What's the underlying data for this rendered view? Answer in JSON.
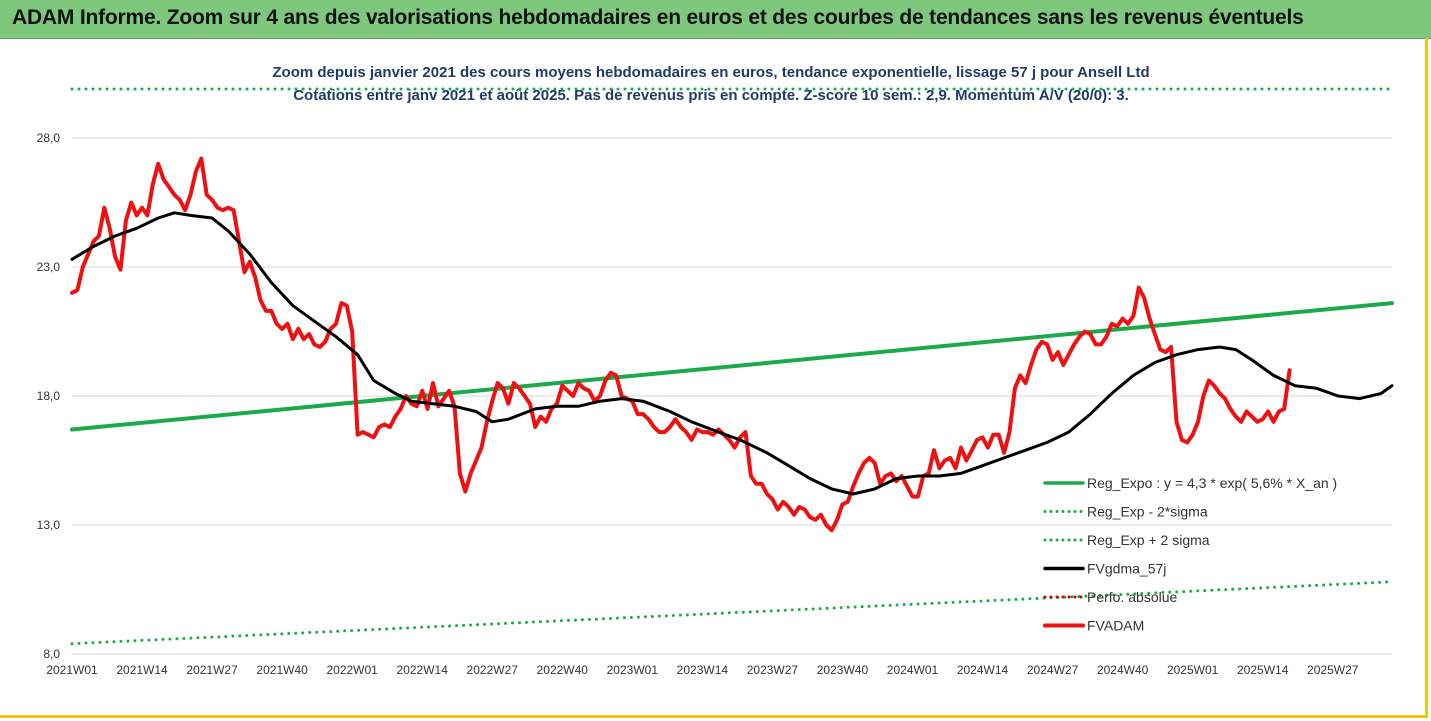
{
  "header": {
    "title": "ADAM Informe. Zoom sur 4 ans des valorisations hebdomadaires en euros et des courbes de tendances sans les revenus éventuels"
  },
  "colors": {
    "header_bg": "#7dc87d",
    "reg": "#1aaa4a",
    "price": "#ee1111",
    "smooth": "#000000",
    "perfo": "#cc0000",
    "frame": "#f0c419"
  },
  "chart_data": {
    "type": "line",
    "subtitle_lines": [
      "Zoom depuis janvier 2021 des cours moyens hebdomadaires en euros, tendance exponentielle, lissage 57 j pour Ansell Ltd",
      "Cotations entre janv 2021 et août 2025.  Pas de revenus pris en compte. Z-score 10 sem.: 2,9. Momentum A/V (20/0): 3."
    ],
    "ylim": [
      8.0,
      30.0
    ],
    "y_ticks": [
      "8,0",
      "13,0",
      "18,0",
      "23,0",
      "28,0"
    ],
    "y_tick_values": [
      8,
      13,
      18,
      23,
      28
    ],
    "x_ticks": [
      "2021W01",
      "2021W14",
      "2021W27",
      "2021W40",
      "2022W01",
      "2022W14",
      "2022W27",
      "2022W40",
      "2023W01",
      "2023W14",
      "2023W27",
      "2023W40",
      "2024W01",
      "2024W14",
      "2024W27",
      "2024W40",
      "2025W01",
      "2025W14",
      "2025W27"
    ],
    "x_tick_index": [
      0,
      13,
      26,
      39,
      52,
      65,
      78,
      91,
      104,
      117,
      130,
      143,
      156,
      169,
      182,
      195,
      208,
      221,
      234
    ],
    "x_max_index": 245,
    "grid": "horizontal",
    "legend_position": "bottom-right",
    "series": [
      {
        "name": "Reg_Expo : y = 4,3 * exp( 5,6% *  X_an )",
        "style": "solid",
        "color": "#1aaa4a",
        "points": [
          [
            0,
            16.7
          ],
          [
            245,
            21.6
          ]
        ]
      },
      {
        "name": "Reg_Exp - 2*sigma",
        "style": "dotted",
        "color": "#1aaa4a",
        "points": [
          [
            0,
            8.4
          ],
          [
            245,
            10.8
          ]
        ]
      },
      {
        "name": "Reg_Exp + 2 sigma",
        "style": "dotted",
        "color": "#1aaa4a",
        "points": [
          [
            0,
            29.9
          ],
          [
            245,
            29.9
          ]
        ]
      },
      {
        "name": "FVgdma_57j",
        "style": "solid",
        "color": "#000000",
        "points": [
          [
            0,
            23.3
          ],
          [
            4,
            23.8
          ],
          [
            8,
            24.2
          ],
          [
            12,
            24.5
          ],
          [
            16,
            24.9
          ],
          [
            19,
            25.1
          ],
          [
            22,
            25.0
          ],
          [
            26,
            24.9
          ],
          [
            29,
            24.4
          ],
          [
            33,
            23.5
          ],
          [
            37,
            22.4
          ],
          [
            41,
            21.5
          ],
          [
            45,
            20.9
          ],
          [
            49,
            20.3
          ],
          [
            53,
            19.6
          ],
          [
            56,
            18.6
          ],
          [
            60,
            18.1
          ],
          [
            63,
            17.8
          ],
          [
            67,
            17.7
          ],
          [
            71,
            17.6
          ],
          [
            75,
            17.4
          ],
          [
            78,
            17.0
          ],
          [
            81,
            17.1
          ],
          [
            86,
            17.5
          ],
          [
            90,
            17.6
          ],
          [
            94,
            17.6
          ],
          [
            98,
            17.8
          ],
          [
            102,
            17.9
          ],
          [
            106,
            17.8
          ],
          [
            111,
            17.4
          ],
          [
            115,
            17.0
          ],
          [
            120,
            16.6
          ],
          [
            124,
            16.3
          ],
          [
            129,
            15.8
          ],
          [
            133,
            15.3
          ],
          [
            137,
            14.8
          ],
          [
            141,
            14.4
          ],
          [
            145,
            14.2
          ],
          [
            149,
            14.4
          ],
          [
            153,
            14.8
          ],
          [
            157,
            14.9
          ],
          [
            161,
            14.9
          ],
          [
            165,
            15.0
          ],
          [
            169,
            15.3
          ],
          [
            173,
            15.6
          ],
          [
            177,
            15.9
          ],
          [
            181,
            16.2
          ],
          [
            185,
            16.6
          ],
          [
            189,
            17.3
          ],
          [
            193,
            18.1
          ],
          [
            197,
            18.8
          ],
          [
            201,
            19.3
          ],
          [
            205,
            19.6
          ],
          [
            209,
            19.8
          ],
          [
            213,
            19.9
          ],
          [
            216,
            19.8
          ],
          [
            219,
            19.4
          ],
          [
            223,
            18.8
          ],
          [
            227,
            18.4
          ],
          [
            231,
            18.3
          ],
          [
            235,
            18.0
          ],
          [
            239,
            17.9
          ],
          [
            243,
            18.1
          ],
          [
            245,
            18.4
          ]
        ]
      },
      {
        "name": "Perfo. absolue",
        "style": "dotted",
        "color": "#cc0000",
        "points": []
      },
      {
        "name": "FVADAM",
        "style": "solid",
        "color": "#ee1111",
        "points": [
          [
            0,
            22.0
          ],
          [
            1,
            22.1
          ],
          [
            2,
            23.0
          ],
          [
            3,
            23.5
          ],
          [
            4,
            24.0
          ],
          [
            5,
            24.2
          ],
          [
            6,
            25.3
          ],
          [
            7,
            24.5
          ],
          [
            8,
            23.4
          ],
          [
            9,
            22.9
          ],
          [
            10,
            24.8
          ],
          [
            11,
            25.5
          ],
          [
            12,
            25.0
          ],
          [
            13,
            25.3
          ],
          [
            14,
            25.0
          ],
          [
            15,
            26.2
          ],
          [
            16,
            27.0
          ],
          [
            17,
            26.4
          ],
          [
            18,
            26.1
          ],
          [
            19,
            25.8
          ],
          [
            20,
            25.6
          ],
          [
            21,
            25.2
          ],
          [
            22,
            25.8
          ],
          [
            23,
            26.7
          ],
          [
            24,
            27.2
          ],
          [
            25,
            25.8
          ],
          [
            26,
            25.6
          ],
          [
            27,
            25.3
          ],
          [
            28,
            25.2
          ],
          [
            29,
            25.3
          ],
          [
            30,
            25.2
          ],
          [
            31,
            24.0
          ],
          [
            32,
            22.8
          ],
          [
            33,
            23.2
          ],
          [
            34,
            22.6
          ],
          [
            35,
            21.7
          ],
          [
            36,
            21.3
          ],
          [
            37,
            21.3
          ],
          [
            38,
            20.8
          ],
          [
            39,
            20.6
          ],
          [
            40,
            20.8
          ],
          [
            41,
            20.2
          ],
          [
            42,
            20.6
          ],
          [
            43,
            20.2
          ],
          [
            44,
            20.4
          ],
          [
            45,
            20.0
          ],
          [
            46,
            19.9
          ],
          [
            47,
            20.1
          ],
          [
            48,
            20.6
          ],
          [
            49,
            20.8
          ],
          [
            50,
            21.6
          ],
          [
            51,
            21.5
          ],
          [
            52,
            20.5
          ],
          [
            53,
            16.5
          ],
          [
            54,
            16.6
          ],
          [
            55,
            16.5
          ],
          [
            56,
            16.4
          ],
          [
            57,
            16.8
          ],
          [
            58,
            16.9
          ],
          [
            59,
            16.8
          ],
          [
            60,
            17.2
          ],
          [
            61,
            17.5
          ],
          [
            62,
            18.0
          ],
          [
            63,
            17.7
          ],
          [
            64,
            17.6
          ],
          [
            65,
            18.2
          ],
          [
            66,
            17.5
          ],
          [
            67,
            18.5
          ],
          [
            68,
            17.6
          ],
          [
            69,
            17.9
          ],
          [
            70,
            18.2
          ],
          [
            71,
            17.6
          ],
          [
            72,
            15.0
          ],
          [
            73,
            14.3
          ],
          [
            74,
            15.0
          ],
          [
            75,
            15.5
          ],
          [
            76,
            16.0
          ],
          [
            77,
            17.0
          ],
          [
            78,
            17.8
          ],
          [
            79,
            18.5
          ],
          [
            80,
            18.3
          ],
          [
            81,
            17.7
          ],
          [
            82,
            18.5
          ],
          [
            83,
            18.3
          ],
          [
            84,
            18.0
          ],
          [
            85,
            17.7
          ],
          [
            86,
            16.8
          ],
          [
            87,
            17.2
          ],
          [
            88,
            17.0
          ],
          [
            89,
            17.5
          ],
          [
            90,
            17.7
          ],
          [
            91,
            18.4
          ],
          [
            92,
            18.2
          ],
          [
            93,
            18.0
          ],
          [
            94,
            18.5
          ],
          [
            95,
            18.3
          ],
          [
            96,
            18.2
          ],
          [
            97,
            17.8
          ],
          [
            98,
            18.0
          ],
          [
            99,
            18.6
          ],
          [
            100,
            18.9
          ],
          [
            101,
            18.8
          ],
          [
            102,
            18.0
          ],
          [
            103,
            17.9
          ],
          [
            104,
            17.8
          ],
          [
            105,
            17.3
          ],
          [
            106,
            17.3
          ],
          [
            107,
            17.1
          ],
          [
            108,
            16.8
          ],
          [
            109,
            16.6
          ],
          [
            110,
            16.6
          ],
          [
            111,
            16.8
          ],
          [
            112,
            17.1
          ],
          [
            113,
            16.8
          ],
          [
            114,
            16.6
          ],
          [
            115,
            16.3
          ],
          [
            116,
            16.7
          ],
          [
            117,
            16.6
          ],
          [
            118,
            16.6
          ],
          [
            119,
            16.5
          ],
          [
            120,
            16.7
          ],
          [
            121,
            16.5
          ],
          [
            122,
            16.3
          ],
          [
            123,
            16.0
          ],
          [
            124,
            16.4
          ],
          [
            125,
            16.6
          ],
          [
            126,
            14.9
          ],
          [
            127,
            14.6
          ],
          [
            128,
            14.6
          ],
          [
            129,
            14.2
          ],
          [
            130,
            14.0
          ],
          [
            131,
            13.6
          ],
          [
            132,
            13.9
          ],
          [
            133,
            13.7
          ],
          [
            134,
            13.4
          ],
          [
            135,
            13.7
          ],
          [
            136,
            13.6
          ],
          [
            137,
            13.3
          ],
          [
            138,
            13.2
          ],
          [
            139,
            13.4
          ],
          [
            140,
            13.0
          ],
          [
            141,
            12.8
          ],
          [
            142,
            13.2
          ],
          [
            143,
            13.8
          ],
          [
            144,
            13.9
          ],
          [
            145,
            14.5
          ],
          [
            146,
            15.0
          ],
          [
            147,
            15.4
          ],
          [
            148,
            15.6
          ],
          [
            149,
            15.4
          ],
          [
            150,
            14.6
          ],
          [
            151,
            14.9
          ],
          [
            152,
            15.0
          ],
          [
            153,
            14.7
          ],
          [
            154,
            14.9
          ],
          [
            155,
            14.5
          ],
          [
            156,
            14.1
          ],
          [
            157,
            14.1
          ],
          [
            158,
            14.9
          ],
          [
            159,
            15.0
          ],
          [
            160,
            15.9
          ],
          [
            161,
            15.2
          ],
          [
            162,
            15.5
          ],
          [
            163,
            15.6
          ],
          [
            164,
            15.2
          ],
          [
            165,
            16.0
          ],
          [
            166,
            15.5
          ],
          [
            167,
            15.9
          ],
          [
            168,
            16.3
          ],
          [
            169,
            16.4
          ],
          [
            170,
            16.0
          ],
          [
            171,
            16.5
          ],
          [
            172,
            16.5
          ],
          [
            173,
            15.8
          ],
          [
            174,
            16.6
          ],
          [
            175,
            18.3
          ],
          [
            176,
            18.8
          ],
          [
            177,
            18.5
          ],
          [
            178,
            19.2
          ],
          [
            179,
            19.8
          ],
          [
            180,
            20.1
          ],
          [
            181,
            20.0
          ],
          [
            182,
            19.4
          ],
          [
            183,
            19.7
          ],
          [
            184,
            19.2
          ],
          [
            185,
            19.6
          ],
          [
            186,
            20.0
          ],
          [
            187,
            20.3
          ],
          [
            188,
            20.5
          ],
          [
            189,
            20.4
          ],
          [
            190,
            20.0
          ],
          [
            191,
            20.0
          ],
          [
            192,
            20.3
          ],
          [
            193,
            20.8
          ],
          [
            194,
            20.7
          ],
          [
            195,
            21.0
          ],
          [
            196,
            20.8
          ],
          [
            197,
            21.1
          ],
          [
            198,
            22.2
          ],
          [
            199,
            21.8
          ],
          [
            200,
            21.0
          ],
          [
            201,
            20.4
          ],
          [
            202,
            19.8
          ],
          [
            203,
            19.7
          ],
          [
            204,
            19.9
          ],
          [
            205,
            17.0
          ],
          [
            206,
            16.3
          ],
          [
            207,
            16.2
          ],
          [
            208,
            16.5
          ],
          [
            209,
            17.0
          ],
          [
            210,
            18.0
          ],
          [
            211,
            18.6
          ],
          [
            212,
            18.4
          ],
          [
            213,
            18.1
          ],
          [
            214,
            17.9
          ],
          [
            215,
            17.5
          ],
          [
            216,
            17.2
          ],
          [
            217,
            17.0
          ],
          [
            218,
            17.4
          ],
          [
            219,
            17.2
          ],
          [
            220,
            17.0
          ],
          [
            221,
            17.1
          ],
          [
            222,
            17.4
          ],
          [
            223,
            17.0
          ],
          [
            224,
            17.4
          ],
          [
            225,
            17.5
          ],
          [
            226,
            19.0
          ]
        ]
      }
    ]
  }
}
